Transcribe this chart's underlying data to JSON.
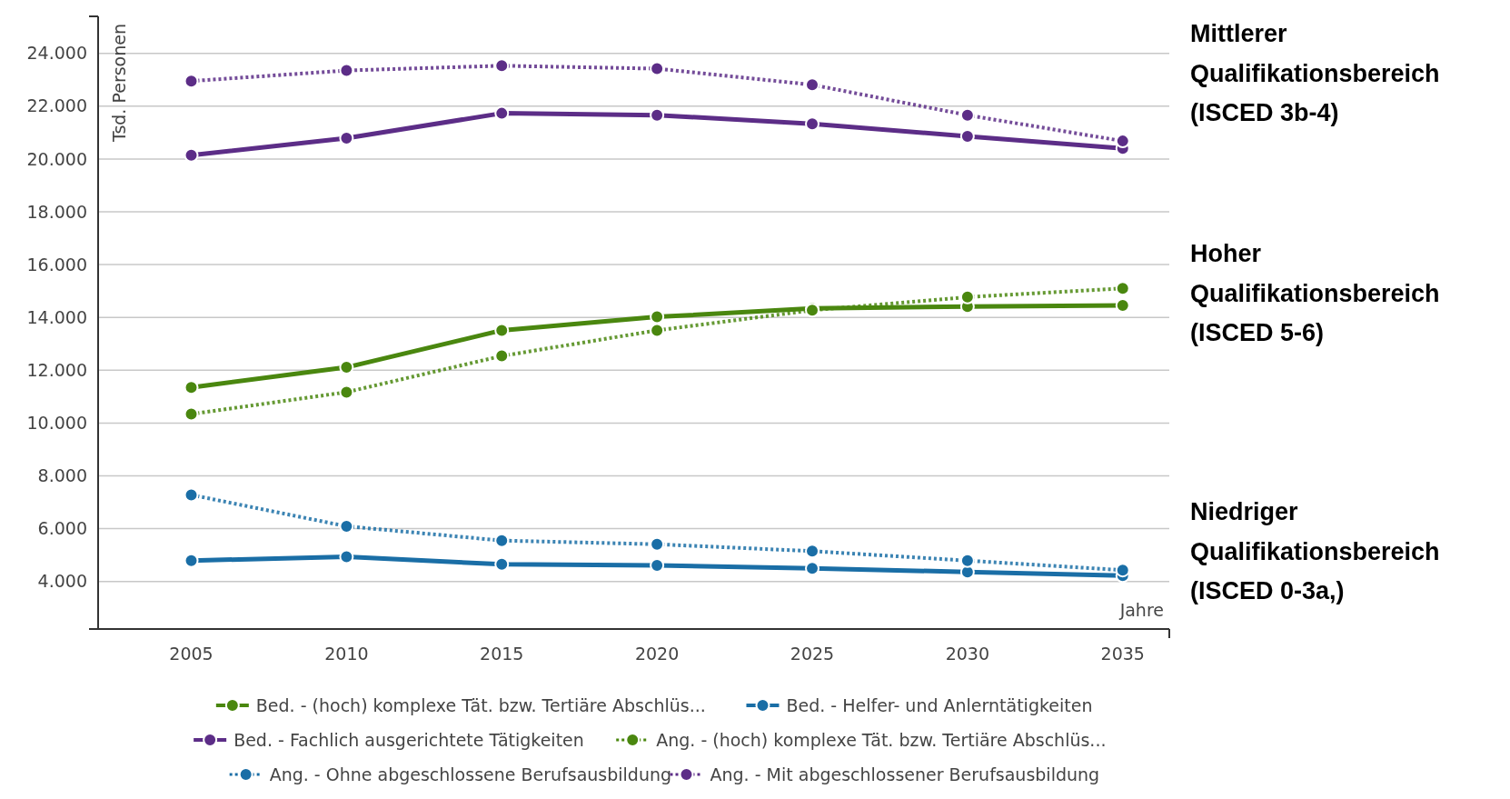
{
  "chart_data": {
    "type": "line",
    "ylabel": "Tsd. Personen",
    "xlabel": "Jahre",
    "x": [
      2005,
      2010,
      2015,
      2020,
      2025,
      2030,
      2035
    ],
    "xlim": [
      2002,
      2036.5
    ],
    "xticks": [
      2005,
      2010,
      2015,
      2020,
      2025,
      2030,
      2035
    ],
    "ylim": [
      2200,
      25400
    ],
    "yticks": [
      {
        "value": 4000,
        "label": "4.000"
      },
      {
        "value": 6000,
        "label": "6.000"
      },
      {
        "value": 8000,
        "label": "8.000"
      },
      {
        "value": 10000,
        "label": "10.000"
      },
      {
        "value": 12000,
        "label": "12.000"
      },
      {
        "value": 14000,
        "label": "14.000"
      },
      {
        "value": 16000,
        "label": "16.000"
      },
      {
        "value": 18000,
        "label": "18.000"
      },
      {
        "value": 20000,
        "label": "20.000"
      },
      {
        "value": 22000,
        "label": "22.000"
      },
      {
        "value": 24000,
        "label": "24.000"
      }
    ],
    "grid": "y",
    "legend": "bottom",
    "marker": "circle",
    "series": [
      {
        "name": "Bed. - (hoch) komplexe Tät. bzw. Tertiäre Abschlüs...",
        "color": "#4a870f",
        "line_style": "solid",
        "values": [
          11350,
          12110,
          13510,
          14020,
          14340,
          14410,
          14450
        ]
      },
      {
        "name": "Bed. - Helfer- und Anlerntätigkeiten",
        "color": "#1a6ea6",
        "line_style": "solid",
        "values": [
          4790,
          4940,
          4650,
          4610,
          4500,
          4360,
          4220
        ]
      },
      {
        "name": "Bed. - Fachlich ausgerichtete Tätigkeiten",
        "color": "#5c2d87",
        "line_style": "solid",
        "values": [
          20140,
          20790,
          21730,
          21660,
          21330,
          20860,
          20400
        ]
      },
      {
        "name": "Ang. - (hoch) komplexe Tät. bzw. Tertiäre Abschlüs...",
        "color": "#4a870f",
        "line_style": "dotted",
        "values": [
          10340,
          11170,
          12540,
          13510,
          14270,
          14770,
          15100
        ]
      },
      {
        "name": "Ang. - Ohne abgeschlossene Berufsausbildung",
        "color": "#1a6ea6",
        "line_style": "dotted",
        "values": [
          7280,
          6090,
          5550,
          5410,
          5150,
          4790,
          4430
        ]
      },
      {
        "name": "Ang. - Mit abgeschlossener Berufsausbildung",
        "color": "#5c2d87",
        "line_style": "dotted",
        "values": [
          22950,
          23350,
          23530,
          23420,
          22810,
          21660,
          20680
        ]
      }
    ],
    "annotations": [
      "Mittlerer Qualifikationsbereich (ISCED 3b-4)",
      "Hoher Qualifikationsbereich (ISCED 5-6)",
      "Niedriger Qualifikationsbereich (ISCED 0-3a,)"
    ]
  }
}
